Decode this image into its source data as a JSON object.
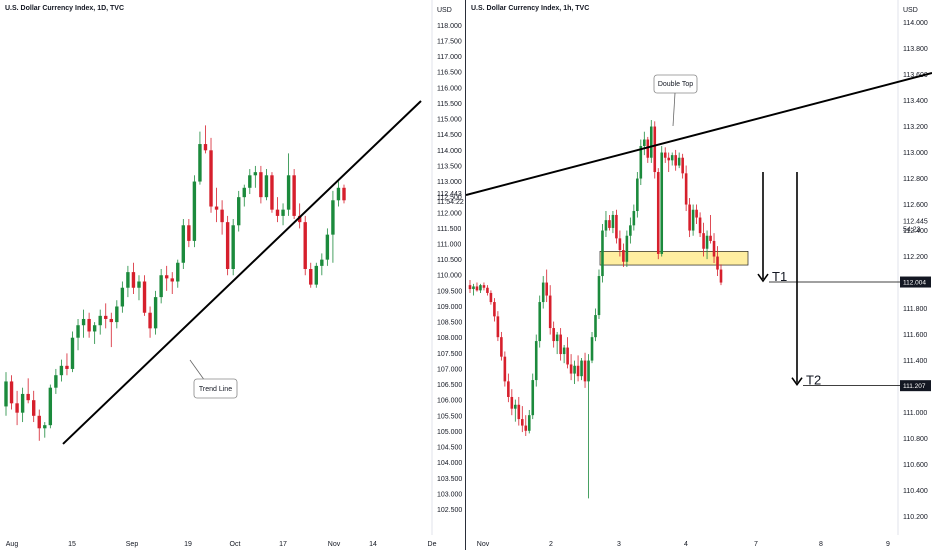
{
  "chart_data": [
    {
      "type": "candlestick",
      "title": "U.S. Dollar Currency Index, 1D, TVC",
      "ylabel": "USD",
      "yticks": [
        "118.000",
        "117.500",
        "117.000",
        "116.500",
        "116.000",
        "115.500",
        "115.000",
        "114.500",
        "114.000",
        "113.500",
        "113.000",
        "112.500",
        "112.000",
        "111.500",
        "111.000",
        "110.500",
        "110.000",
        "109.500",
        "109.000",
        "108.500",
        "108.000",
        "107.500",
        "107.000",
        "106.500",
        "106.000",
        "105.500",
        "105.000",
        "104.500",
        "104.000",
        "103.500",
        "103.000",
        "102.500"
      ],
      "ylim": [
        102.1,
        118.3
      ],
      "xticks": [
        "Aug",
        "15",
        "Sep",
        "19",
        "Oct",
        "17",
        "Nov",
        "14",
        "De"
      ],
      "price_labels": [
        "112.443",
        "11:54:22",
        "112.000"
      ],
      "annotations": [
        {
          "text": "Trend Line"
        }
      ],
      "trendline": {
        "from": [
          0,
          104.6
        ],
        "to": [
          74,
          114.3
        ]
      },
      "candles": [
        [
          105.8,
          106.9,
          105.5,
          106.6
        ],
        [
          106.6,
          106.8,
          105.7,
          105.9
        ],
        [
          105.9,
          106.3,
          105.2,
          105.6
        ],
        [
          105.6,
          106.4,
          105.3,
          106.2
        ],
        [
          106.2,
          106.7,
          105.9,
          106.0
        ],
        [
          106.0,
          106.3,
          105.3,
          105.5
        ],
        [
          105.5,
          105.7,
          104.7,
          105.1
        ],
        [
          105.1,
          105.3,
          104.8,
          105.2
        ],
        [
          105.2,
          106.5,
          105.1,
          106.4
        ],
        [
          106.4,
          107.0,
          106.2,
          106.8
        ],
        [
          106.8,
          107.3,
          106.6,
          107.1
        ],
        [
          107.1,
          107.5,
          106.8,
          107.0
        ],
        [
          107.0,
          108.2,
          106.9,
          108.0
        ],
        [
          108.0,
          108.6,
          107.6,
          108.4
        ],
        [
          108.4,
          108.9,
          108.0,
          108.6
        ],
        [
          108.6,
          108.8,
          108.0,
          108.2
        ],
        [
          108.2,
          108.5,
          107.8,
          108.4
        ],
        [
          108.4,
          108.9,
          108.1,
          108.7
        ],
        [
          108.7,
          109.1,
          108.3,
          108.6
        ],
        [
          108.6,
          108.8,
          107.7,
          108.5
        ],
        [
          108.5,
          109.2,
          108.3,
          109.0
        ],
        [
          109.0,
          109.8,
          108.8,
          109.6
        ],
        [
          109.6,
          110.3,
          109.3,
          110.1
        ],
        [
          110.1,
          110.4,
          109.4,
          109.6
        ],
        [
          109.6,
          110.0,
          109.2,
          109.8
        ],
        [
          109.8,
          110.0,
          108.7,
          108.8
        ],
        [
          108.8,
          109.0,
          108.0,
          108.3
        ],
        [
          108.3,
          109.5,
          108.1,
          109.3
        ],
        [
          109.3,
          110.2,
          109.1,
          110.0
        ],
        [
          110.0,
          110.3,
          109.5,
          109.9
        ],
        [
          109.9,
          110.1,
          109.4,
          109.8
        ],
        [
          109.8,
          110.5,
          109.6,
          110.4
        ],
        [
          110.4,
          111.8,
          110.2,
          111.6
        ],
        [
          111.6,
          111.8,
          110.9,
          111.1
        ],
        [
          111.1,
          113.2,
          110.9,
          113.0
        ],
        [
          113.0,
          114.6,
          112.9,
          114.2
        ],
        [
          114.2,
          114.8,
          113.9,
          114.0
        ],
        [
          114.0,
          114.4,
          112.0,
          112.2
        ],
        [
          112.2,
          112.8,
          111.7,
          112.1
        ],
        [
          112.1,
          112.4,
          111.3,
          111.7
        ],
        [
          111.7,
          111.9,
          110.0,
          110.2
        ],
        [
          110.2,
          111.8,
          110.0,
          111.6
        ],
        [
          111.6,
          112.7,
          111.4,
          112.5
        ],
        [
          112.5,
          112.9,
          112.2,
          112.8
        ],
        [
          112.8,
          113.4,
          112.6,
          113.2
        ],
        [
          113.2,
          113.5,
          112.8,
          113.3
        ],
        [
          113.3,
          113.5,
          112.3,
          112.5
        ],
        [
          112.5,
          113.4,
          112.4,
          113.2
        ],
        [
          113.2,
          113.3,
          112.0,
          112.1
        ],
        [
          112.1,
          112.5,
          111.7,
          111.9
        ],
        [
          111.9,
          112.3,
          111.6,
          112.1
        ],
        [
          112.1,
          113.9,
          111.9,
          113.2
        ],
        [
          113.2,
          113.4,
          111.8,
          111.9
        ],
        [
          111.9,
          112.3,
          111.5,
          111.7
        ],
        [
          111.7,
          111.9,
          110.0,
          110.2
        ],
        [
          110.2,
          110.4,
          109.6,
          109.7
        ],
        [
          109.7,
          110.4,
          109.6,
          110.3
        ],
        [
          110.3,
          110.7,
          110.0,
          110.5
        ],
        [
          110.5,
          111.5,
          110.3,
          111.3
        ],
        [
          111.3,
          112.7,
          110.4,
          112.4
        ],
        [
          112.4,
          113.0,
          112.2,
          112.8
        ],
        [
          112.8,
          112.9,
          112.3,
          112.4
        ]
      ]
    },
    {
      "type": "candlestick",
      "title": "U.S. Dollar Currency Index, 1h, TVC",
      "ylabel": "USD",
      "yticks": [
        "114.000",
        "113.800",
        "113.600",
        "113.400",
        "113.200",
        "113.000",
        "112.800",
        "112.600",
        "112.400",
        "112.200",
        "112.000",
        "111.800",
        "111.600",
        "111.400",
        "111.200",
        "111.000",
        "110.800",
        "110.600",
        "110.400",
        "110.200"
      ],
      "ylim": [
        110.12,
        114.05
      ],
      "xticks": [
        "Nov",
        "2",
        "3",
        "4",
        "7",
        "8",
        "9"
      ],
      "price_labels": [
        "112.445",
        "54:23"
      ],
      "annotations": [
        {
          "text": "Double Top"
        }
      ],
      "targets": [
        {
          "label": "T1",
          "price": "112.004",
          "value": 112.004
        },
        {
          "label": "T2",
          "price": "111.207",
          "value": 111.207
        }
      ],
      "zone": {
        "from": 112.24,
        "to": 112.15
      },
      "trendline": {
        "from": [
          0,
          112.22
        ],
        "to": [
          160,
          113.6
        ]
      },
      "candles": [
        [
          111.98,
          112.02,
          111.92,
          111.95
        ],
        [
          111.95,
          111.99,
          111.9,
          111.97
        ],
        [
          111.97,
          112.0,
          111.93,
          111.94
        ],
        [
          111.94,
          111.99,
          111.92,
          111.98
        ],
        [
          111.98,
          112.0,
          111.94,
          111.96
        ],
        [
          111.96,
          111.98,
          111.9,
          111.92
        ],
        [
          111.92,
          111.94,
          111.83,
          111.85
        ],
        [
          111.85,
          111.88,
          111.7,
          111.74
        ],
        [
          111.74,
          111.78,
          111.55,
          111.58
        ],
        [
          111.58,
          111.62,
          111.4,
          111.43
        ],
        [
          111.43,
          111.47,
          111.2,
          111.24
        ],
        [
          111.24,
          111.3,
          111.08,
          111.12
        ],
        [
          111.12,
          111.18,
          110.98,
          111.03
        ],
        [
          111.03,
          111.1,
          110.93,
          111.06
        ],
        [
          111.06,
          111.12,
          110.9,
          110.95
        ],
        [
          110.95,
          111.05,
          110.85,
          110.9
        ],
        [
          110.9,
          110.98,
          110.82,
          110.86
        ],
        [
          110.86,
          111.02,
          110.84,
          110.98
        ],
        [
          110.98,
          111.3,
          110.95,
          111.25
        ],
        [
          111.25,
          111.6,
          111.2,
          111.55
        ],
        [
          111.55,
          111.9,
          111.5,
          111.85
        ],
        [
          111.85,
          112.05,
          111.8,
          112.0
        ],
        [
          112.0,
          112.1,
          111.85,
          111.9
        ],
        [
          111.9,
          111.98,
          111.6,
          111.65
        ],
        [
          111.65,
          111.7,
          111.5,
          111.55
        ],
        [
          111.55,
          111.62,
          111.45,
          111.6
        ],
        [
          111.6,
          111.65,
          111.4,
          111.45
        ],
        [
          111.45,
          111.52,
          111.38,
          111.5
        ],
        [
          111.5,
          111.58,
          111.34,
          111.37
        ],
        [
          111.37,
          111.45,
          111.25,
          111.3
        ],
        [
          111.3,
          111.4,
          111.22,
          111.36
        ],
        [
          111.36,
          111.44,
          111.24,
          111.28
        ],
        [
          111.28,
          111.42,
          111.25,
          111.4
        ],
        [
          111.4,
          111.46,
          111.19,
          111.24
        ],
        [
          111.24,
          111.45,
          110.34,
          111.4
        ],
        [
          111.4,
          111.62,
          111.38,
          111.58
        ],
        [
          111.58,
          111.8,
          111.55,
          111.75
        ],
        [
          111.75,
          112.1,
          111.72,
          112.05
        ],
        [
          112.05,
          112.45,
          112.0,
          112.4
        ],
        [
          112.4,
          112.55,
          112.35,
          112.48
        ],
        [
          112.48,
          112.52,
          112.4,
          112.42
        ],
        [
          112.42,
          112.55,
          112.38,
          112.52
        ],
        [
          112.52,
          112.56,
          112.3,
          112.34
        ],
        [
          112.34,
          112.4,
          112.2,
          112.25
        ],
        [
          112.25,
          112.3,
          112.12,
          112.16
        ],
        [
          112.16,
          112.4,
          112.12,
          112.36
        ],
        [
          112.36,
          112.5,
          112.3,
          112.44
        ],
        [
          112.44,
          112.6,
          112.4,
          112.55
        ],
        [
          112.55,
          112.85,
          112.5,
          112.8
        ],
        [
          112.8,
          113.1,
          112.75,
          113.05
        ],
        [
          113.05,
          113.16,
          112.98,
          113.1
        ],
        [
          113.1,
          113.12,
          112.92,
          112.96
        ],
        [
          112.96,
          113.25,
          112.92,
          113.2
        ],
        [
          113.2,
          113.24,
          112.8,
          112.85
        ],
        [
          112.85,
          112.88,
          112.18,
          112.22
        ],
        [
          112.22,
          113.05,
          112.2,
          113.0
        ],
        [
          113.0,
          113.04,
          112.92,
          112.96
        ],
        [
          112.96,
          113.0,
          112.85,
          112.94
        ],
        [
          112.94,
          113.0,
          112.9,
          112.98
        ],
        [
          112.98,
          113.02,
          112.86,
          112.9
        ],
        [
          112.9,
          113.0,
          112.88,
          112.96
        ],
        [
          112.96,
          112.99,
          112.8,
          112.84
        ],
        [
          112.84,
          112.9,
          112.55,
          112.6
        ],
        [
          112.6,
          112.65,
          112.35,
          112.4
        ],
        [
          112.4,
          112.6,
          112.36,
          112.56
        ],
        [
          112.56,
          112.6,
          112.45,
          112.5
        ],
        [
          112.5,
          112.54,
          112.35,
          112.38
        ],
        [
          112.38,
          112.46,
          112.2,
          112.26
        ],
        [
          112.26,
          112.4,
          112.18,
          112.36
        ],
        [
          112.36,
          112.52,
          112.3,
          112.32
        ],
        [
          112.32,
          112.38,
          112.15,
          112.2
        ],
        [
          112.2,
          112.28,
          112.05,
          112.1
        ],
        [
          112.1,
          112.14,
          111.98,
          112.0
        ]
      ]
    }
  ]
}
